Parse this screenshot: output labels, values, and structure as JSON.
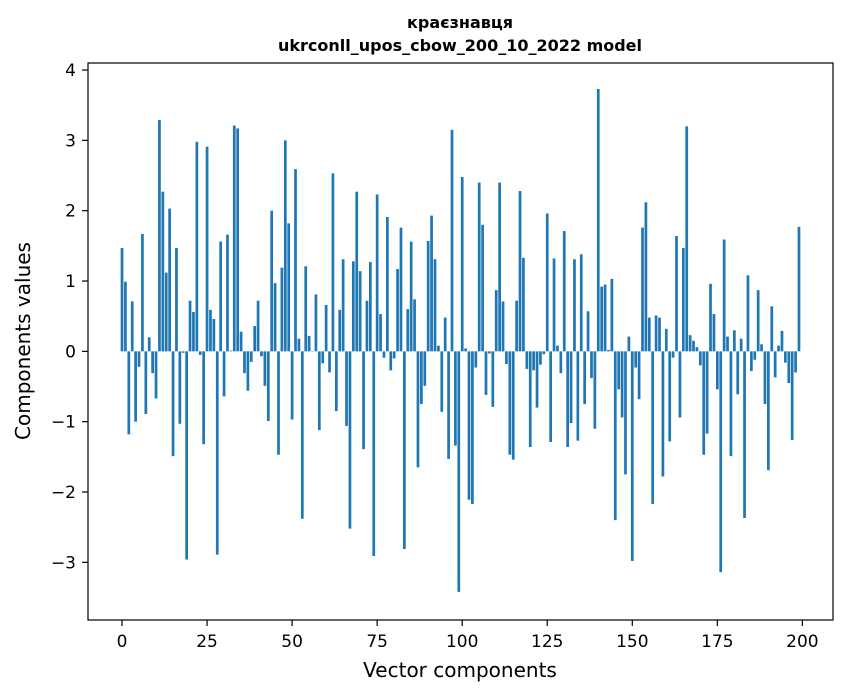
{
  "chart_data": {
    "type": "bar",
    "title": "краєзнавця",
    "subtitle": "ukrconll_upos_cbow_200_10_2022 model",
    "xlabel": "Vector components",
    "ylabel": "Components values",
    "xlim": [
      -10,
      209
    ],
    "ylim": [
      -3.82,
      4.1
    ],
    "xticks": [
      0,
      25,
      50,
      75,
      100,
      125,
      150,
      175,
      200
    ],
    "yticks": [
      -3,
      -2,
      -1,
      0,
      1,
      2,
      3,
      4
    ],
    "bar_color": "#1f77b4",
    "grid": false,
    "values": [
      1.47,
      0.99,
      -1.18,
      0.71,
      -1.0,
      -0.22,
      1.67,
      -0.89,
      0.2,
      -0.31,
      -0.67,
      3.29,
      2.27,
      1.12,
      2.03,
      -1.49,
      1.47,
      -1.03,
      -0.02,
      -2.96,
      0.72,
      0.56,
      2.98,
      -0.05,
      -1.32,
      2.91,
      0.59,
      0.46,
      -2.89,
      1.56,
      -0.64,
      1.66,
      0.01,
      3.21,
      3.17,
      0.28,
      -0.31,
      -0.56,
      -0.15,
      0.36,
      0.72,
      -0.07,
      -0.49,
      -0.99,
      2.0,
      0.97,
      -1.47,
      1.19,
      3.0,
      1.82,
      -0.97,
      2.59,
      0.18,
      -2.38,
      1.21,
      0.22,
      0.0,
      0.81,
      -1.12,
      -0.17,
      0.66,
      -0.3,
      2.53,
      -0.85,
      0.59,
      1.31,
      -1.06,
      -2.52,
      1.28,
      2.27,
      1.14,
      -1.39,
      0.72,
      1.27,
      -2.91,
      2.23,
      0.53,
      -0.09,
      1.91,
      -0.27,
      -0.1,
      1.17,
      1.76,
      -2.81,
      0.6,
      1.56,
      0.74,
      -1.65,
      -0.75,
      -0.49,
      1.57,
      1.93,
      1.31,
      0.08,
      -0.86,
      0.48,
      -1.53,
      3.15,
      -1.34,
      -3.42,
      2.48,
      0.04,
      -2.11,
      -2.17,
      -0.23,
      2.4,
      1.8,
      -0.62,
      -0.03,
      -0.79,
      0.87,
      2.4,
      0.71,
      -0.18,
      -1.47,
      -1.54,
      0.72,
      2.28,
      1.33,
      -0.25,
      -1.36,
      -0.27,
      -0.8,
      -0.19,
      -0.04,
      1.96,
      -1.29,
      1.32,
      0.08,
      -0.31,
      1.71,
      -1.36,
      -1.02,
      1.31,
      -1.27,
      1.38,
      -0.75,
      0.57,
      -0.38,
      -1.1,
      3.73,
      0.92,
      0.95,
      0.02,
      1.03,
      -2.4,
      -0.54,
      -0.94,
      -1.75,
      0.21,
      -2.98,
      -0.23,
      -0.68,
      1.76,
      2.12,
      0.48,
      -2.17,
      0.51,
      0.48,
      -1.78,
      0.32,
      -1.28,
      -0.09,
      1.64,
      -0.94,
      1.47,
      3.2,
      0.23,
      0.15,
      0.06,
      -0.2,
      -1.47,
      -1.17,
      0.96,
      0.53,
      -0.54,
      -3.14,
      1.59,
      0.21,
      -1.49,
      0.3,
      -0.61,
      0.18,
      -2.37,
      1.08,
      -0.28,
      -0.12,
      0.87,
      0.1,
      -0.75,
      -1.69,
      0.64,
      -0.37,
      0.08,
      0.29,
      -0.16,
      -0.45,
      -1.26,
      -0.3,
      1.77
    ]
  }
}
